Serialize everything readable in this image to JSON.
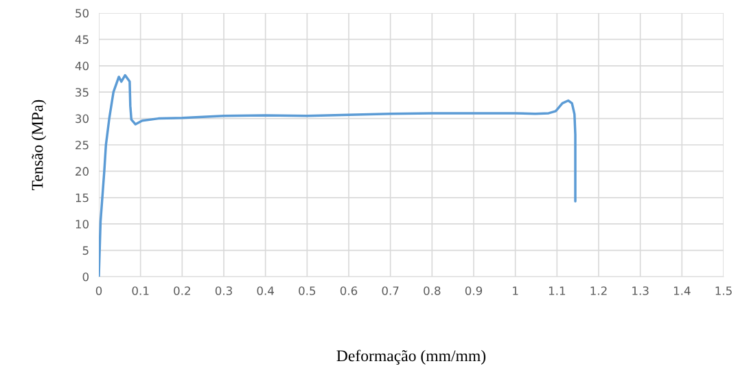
{
  "chart_data": {
    "type": "line",
    "xlabel": "Deformação (mm/mm)",
    "ylabel": "Tensão (MPa)",
    "series": [
      {
        "color": "#5b9bd5",
        "x": [
          0,
          0.004,
          0.013,
          0.017,
          0.025,
          0.035,
          0.048,
          0.054,
          0.063,
          0.074,
          0.0755,
          0.078,
          0.088,
          0.104,
          0.143,
          0.2,
          0.3,
          0.4,
          0.5,
          0.6,
          0.7,
          0.8,
          0.9,
          1.0,
          1.048,
          1.08,
          1.097,
          1.113,
          1.127,
          1.136,
          1.142,
          1.144,
          1.144
        ],
        "values": [
          0,
          10.4,
          20,
          25,
          30,
          35,
          37.9,
          37,
          38.2,
          37,
          32.4,
          29.8,
          28.9,
          29.6,
          30,
          30.1,
          30.5,
          30.6,
          30.5,
          30.7,
          30.9,
          31.0,
          31.0,
          31.0,
          30.9,
          31.0,
          31.4,
          32.9,
          33.4,
          32.9,
          30.8,
          26.9,
          14.3
        ]
      }
    ],
    "xlim": [
      0,
      1.5
    ],
    "xticks": [
      0,
      0.1,
      0.2,
      0.3,
      0.4,
      0.5,
      0.6,
      0.7,
      0.8,
      0.9,
      1,
      1.1,
      1.2,
      1.3,
      1.4,
      1.5
    ],
    "ylim": [
      0,
      50
    ],
    "yticks": [
      0,
      5,
      10,
      15,
      20,
      25,
      30,
      35,
      40,
      45,
      50
    ],
    "grid": true,
    "legend": false,
    "marker": "none",
    "line_style": "solid"
  }
}
